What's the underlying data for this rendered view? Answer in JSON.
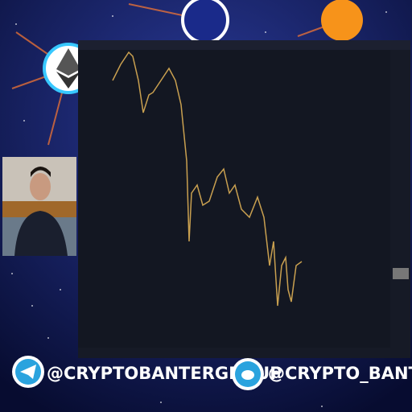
{
  "overlay": {
    "telegram_handle": "@CRYPTOBANTERGROUP",
    "twitter_handle": "@CRYPTO_BANTER"
  }
}
